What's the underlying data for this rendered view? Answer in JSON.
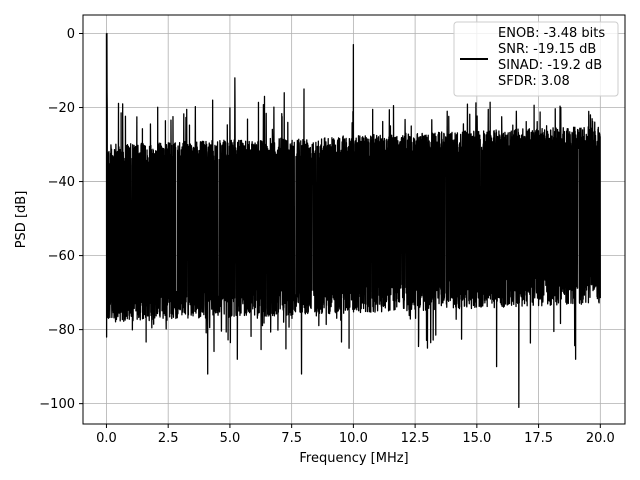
{
  "chart_data": {
    "type": "line",
    "title": "",
    "xlabel": "Frequency [MHz]",
    "ylabel": "PSD [dB]",
    "xlim": [
      -0.95,
      21.0
    ],
    "ylim": [
      -105.5,
      5
    ],
    "grid": true,
    "legend_placement": "top-right",
    "line_color": "#000000",
    "x_ticks": [
      0.0,
      2.5,
      5.0,
      7.5,
      10.0,
      12.5,
      15.0,
      17.5,
      20.0
    ],
    "x_tick_labels": [
      "0.0",
      "2.5",
      "5.0",
      "7.5",
      "10.0",
      "12.5",
      "15.0",
      "17.5",
      "20.0"
    ],
    "y_ticks": [
      0,
      -20,
      -40,
      -60,
      -80,
      -100
    ],
    "y_tick_labels": [
      "0",
      "−20",
      "−40",
      "−60",
      "−80",
      "−100"
    ],
    "series": [
      {
        "name": "ENOB: -3.48 bits\nSNR: -19.15 dB\nSINAD: -19.2 dB\nSFDR: 3.08",
        "x_range": [
          0,
          20
        ],
        "noise_floor_upper_db": [
          -30,
          -25
        ],
        "noise_floor_lower_db": [
          -70,
          -65
        ],
        "peaks": [
          {
            "x": 0.02,
            "y": 0
          },
          {
            "x": 10.0,
            "y": -3
          },
          {
            "x": 5.2,
            "y": -12
          },
          {
            "x": 8.0,
            "y": -15
          },
          {
            "x": 4.3,
            "y": -18
          },
          {
            "x": 6.4,
            "y": -17
          },
          {
            "x": 7.2,
            "y": -16
          },
          {
            "x": 13.8,
            "y": -21
          },
          {
            "x": 16.6,
            "y": -21
          },
          {
            "x": 18.4,
            "y": -20
          },
          {
            "x": 19.6,
            "y": -22
          }
        ],
        "troughs": [
          {
            "x": 4.1,
            "y": -92
          },
          {
            "x": 7.9,
            "y": -92
          },
          {
            "x": 16.7,
            "y": -101
          },
          {
            "x": 15.8,
            "y": -90
          },
          {
            "x": 19.0,
            "y": -88
          },
          {
            "x": 5.3,
            "y": -88
          },
          {
            "x": 13.0,
            "y": -85
          }
        ]
      }
    ],
    "legend_lines": [
      "ENOB: -3.48 bits",
      "SNR: -19.15 dB",
      "SINAD: -19.2 dB",
      "SFDR: 3.08"
    ]
  }
}
